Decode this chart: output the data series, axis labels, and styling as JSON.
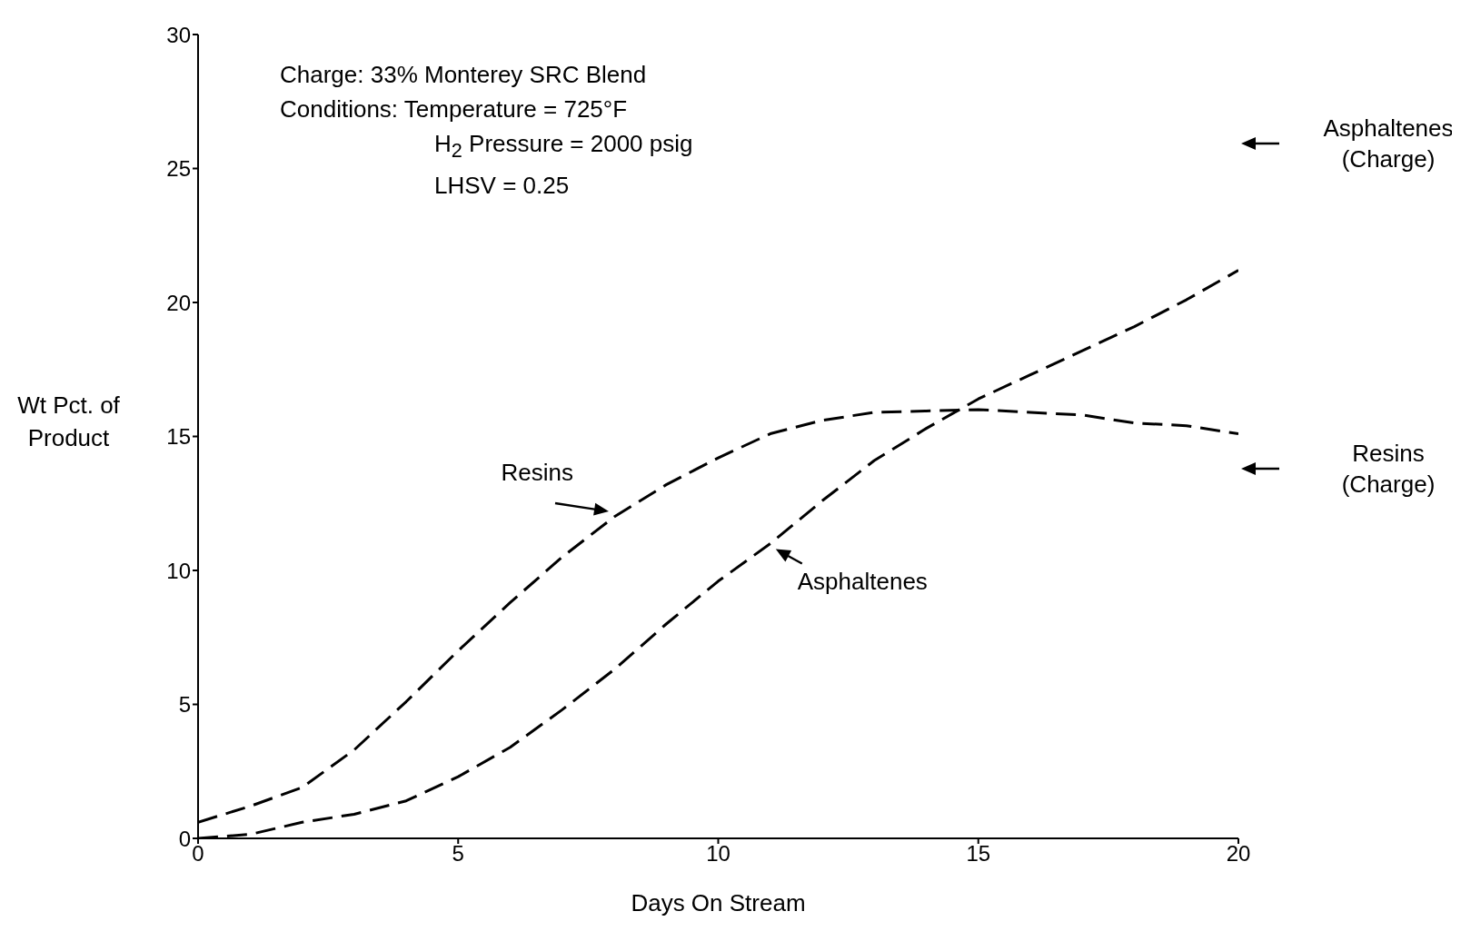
{
  "chart_data": {
    "type": "line",
    "xlabel": "Days On Stream",
    "ylabel": "Wt Pct. of Product",
    "x": [
      0,
      1,
      2,
      3,
      4,
      5,
      6,
      7,
      8,
      9,
      10,
      11,
      12,
      13,
      14,
      15,
      16,
      17,
      18,
      19,
      20
    ],
    "series": [
      {
        "name": "Resins",
        "color": "#000000",
        "values": [
          0.6,
          1.2,
          1.9,
          3.3,
          5.1,
          7.0,
          8.8,
          10.5,
          12.0,
          13.2,
          14.2,
          15.1,
          15.6,
          15.9,
          15.95,
          16.0,
          15.9,
          15.8,
          15.5,
          15.4,
          15.1
        ]
      },
      {
        "name": "Asphaltenes",
        "color": "#000000",
        "values": [
          0.0,
          0.15,
          0.6,
          0.9,
          1.4,
          2.3,
          3.4,
          4.8,
          6.3,
          8.0,
          9.6,
          11.0,
          12.6,
          14.1,
          15.3,
          16.4,
          17.3,
          18.2,
          19.1,
          20.1,
          21.2
        ]
      }
    ],
    "line_style": "dashed",
    "marker": "none",
    "xlim": [
      0,
      20
    ],
    "xticks": [
      0,
      5,
      10,
      15,
      20
    ],
    "ylim": [
      0,
      30
    ],
    "yticks": [
      0,
      5,
      10,
      15,
      20,
      25,
      30
    ],
    "annotations": [
      "Charge:  33% Monterey SRC Blend",
      "Conditions:  Temperature = 725°F",
      "H$_{2}$ Pressure = 2000 psig",
      "LHSV = 0.25",
      "Asphaltenes (Charge)",
      "Resins (Charge)"
    ]
  }
}
